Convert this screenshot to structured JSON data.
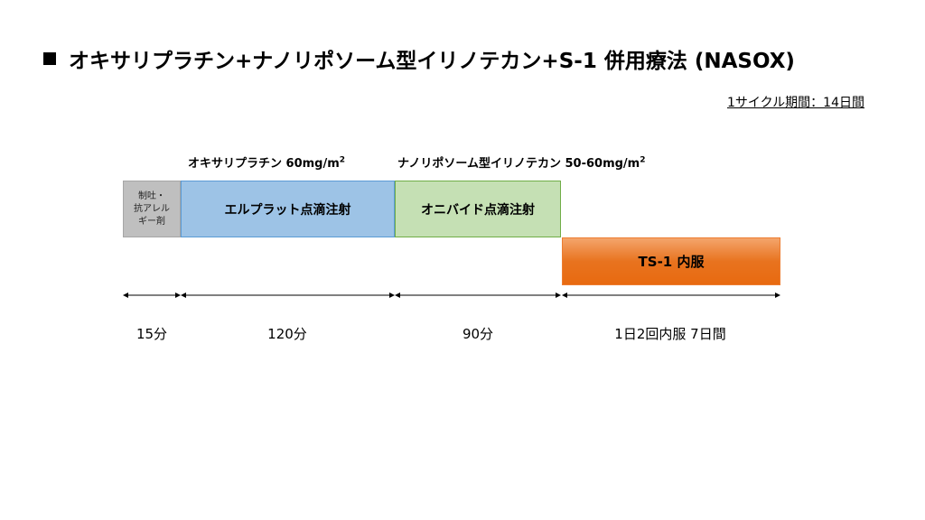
{
  "title": "オキサリプラチン+ナノリポソーム型イリノテカン+S-1 併用療法 (NASOX)",
  "cycle": "1サイクル期間：14日間",
  "drug_labels": {
    "oxaliplatin_name": "オキサリプラチン 60mg/m",
    "oxaliplatin_sup": "2",
    "irinotecan_name": "ナノリポソーム型イリノテカン 50-60mg/m",
    "irinotecan_sup": "2"
  },
  "boxes": {
    "antiemetic_line1": "制吐・",
    "antiemetic_line2": "抗アレル",
    "antiemetic_line3": "ギー剤",
    "elplat": "エルプラット点滴注射",
    "onivyde": "オニバイド点滴注射",
    "ts1": "TS-1 内服"
  },
  "durations": {
    "d1": "15分",
    "d2": "120分",
    "d3": "90分",
    "d4": "1日2回内服 7日間"
  },
  "colors": {
    "antiemetic": "#bfbfbf",
    "elplat": "#9dc3e6",
    "onivyde": "#c5e0b4",
    "ts1": "#ed7d31"
  }
}
